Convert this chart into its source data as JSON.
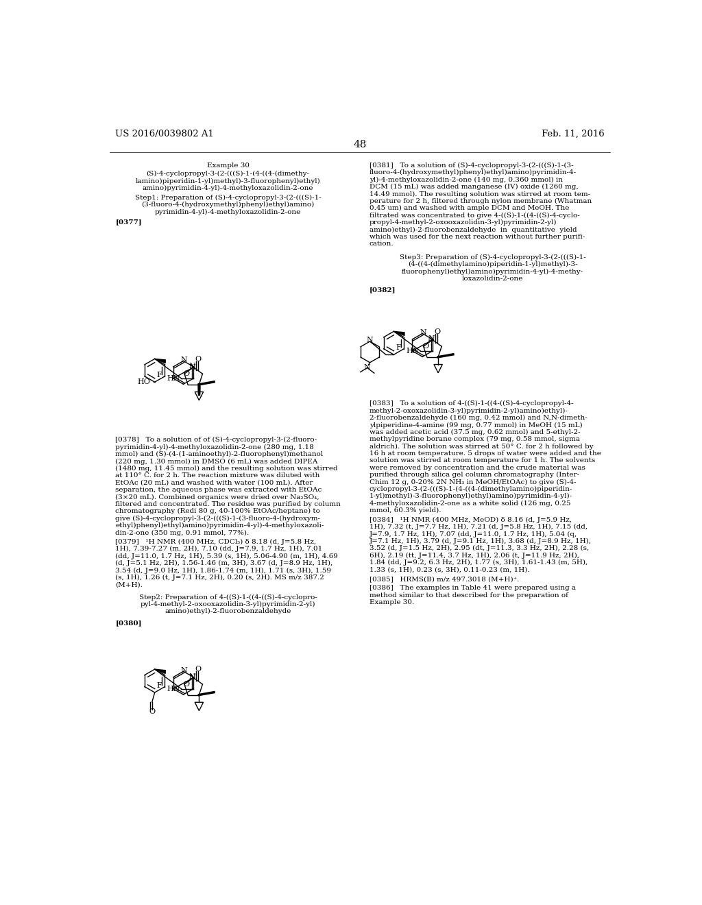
{
  "background_color": "#ffffff",
  "header_left": "US 2016/0039802 A1",
  "header_right": "Feb. 11, 2016",
  "page_number": "48",
  "font_size_body": 7.5,
  "font_size_header": 9.5,
  "font_size_page_num": 11
}
